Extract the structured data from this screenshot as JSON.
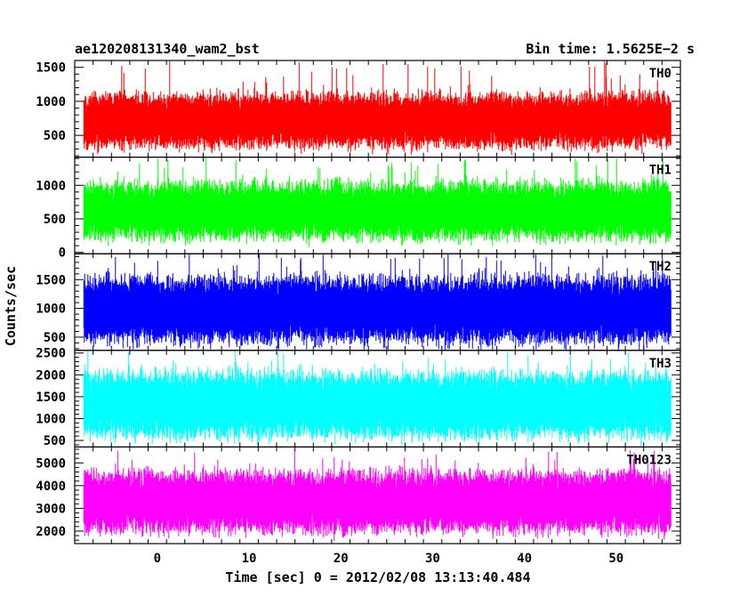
{
  "header": {
    "title": "ae120208131340_wam2_bst",
    "bin_time": "Bin time: 1.5625E−2 s"
  },
  "axes": {
    "xlabel": "Time [sec] 0 = 2012/02/08 13:13:40.484",
    "ylabel": "Counts/sec"
  },
  "chart_data": {
    "type": "line",
    "x_range": [
      -9,
      57
    ],
    "x_ticks": [
      0,
      10,
      20,
      30,
      40,
      50
    ],
    "x_tick_labels": [
      "0",
      "10",
      "20",
      "30",
      "40",
      "50"
    ],
    "bin_time_s": 0.015625,
    "data_x_range": [
      -8,
      56
    ],
    "panels": [
      {
        "name": "TH0",
        "color": "#ff0000",
        "ylim": [
          180,
          1600
        ],
        "y_ticks": [
          500,
          1000,
          1500
        ],
        "y_tick_labels": [
          "500",
          "1000",
          "1500"
        ],
        "typical_low": 350,
        "typical_high": 1150,
        "mean": 720,
        "peak": 1600
      },
      {
        "name": "TH1",
        "color": "#00ff00",
        "ylim": [
          -20,
          1420
        ],
        "y_ticks": [
          0,
          500,
          1000
        ],
        "y_tick_labels": [
          "0",
          "500",
          "1000"
        ],
        "typical_low": 200,
        "typical_high": 1050,
        "mean": 620,
        "peak": 1420
      },
      {
        "name": "TH2",
        "color": "#0000ff",
        "ylim": [
          270,
          1950
        ],
        "y_ticks": [
          500,
          1000,
          1500
        ],
        "y_tick_labels": [
          "500",
          "1000",
          "1500"
        ],
        "typical_low": 400,
        "typical_high": 1550,
        "mean": 980,
        "peak": 1950
      },
      {
        "name": "TH3",
        "color": "#00ffff",
        "ylim": [
          350,
          2560
        ],
        "y_ticks": [
          500,
          1000,
          1500,
          2000,
          2500
        ],
        "y_tick_labels": [
          "500",
          "1000",
          "1500",
          "2000",
          "2500"
        ],
        "typical_low": 600,
        "typical_high": 2100,
        "mean": 1320,
        "peak": 2560
      },
      {
        "name": "TH0123",
        "color": "#ff00ff",
        "ylim": [
          1450,
          5700
        ],
        "y_ticks": [
          2000,
          3000,
          4000,
          5000
        ],
        "y_tick_labels": [
          "2000",
          "3000",
          "4000",
          "5000"
        ],
        "typical_low": 2000,
        "typical_high": 4700,
        "mean": 3300,
        "peak": 5600
      }
    ]
  }
}
